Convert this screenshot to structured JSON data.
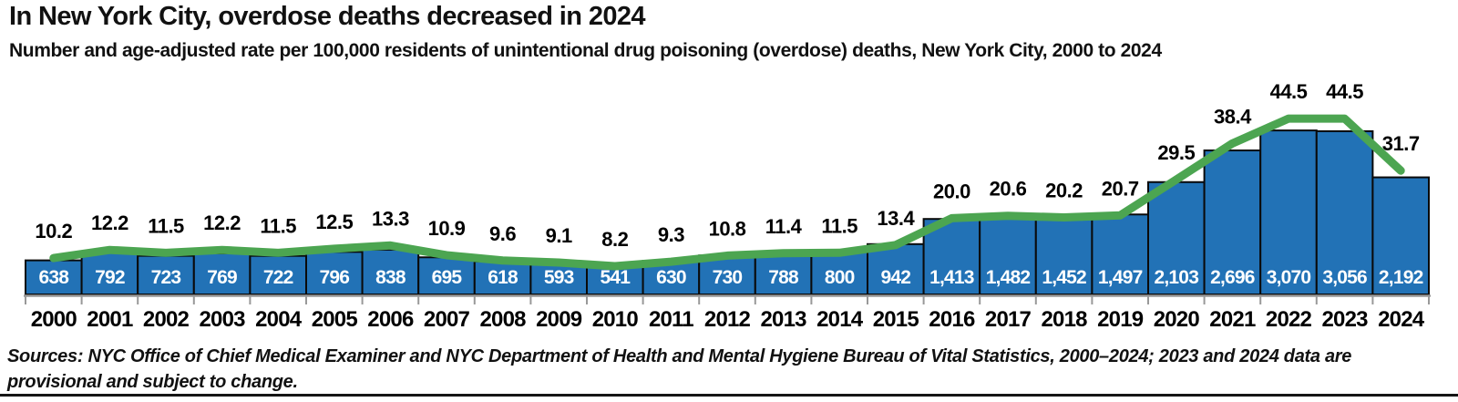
{
  "header": {
    "title": "In New York City, overdose deaths decreased in 2024",
    "subtitle": "Number and age-adjusted rate per 100,000 residents of unintentional drug poisoning (overdose) deaths, New York City, 2000 to 2024"
  },
  "footer": {
    "sources": "Sources: NYC Office of Chief Medical Examiner and NYC Department of Health and Mental Hygiene Bureau of Vital Statistics, 2000–2024; 2023 and 2024 data are provisional and subject to change."
  },
  "colors": {
    "bar_fill": "#2272B6",
    "bar_border": "#0A0A0A",
    "bar_label": "#FFFFFF",
    "rate_line": "#4CA551",
    "axis": "#999999",
    "text": "#000000"
  },
  "chart_data": {
    "type": "bar",
    "title": "In New York City, overdose deaths decreased in 2024",
    "subtitle": "Number and age-adjusted rate per 100,000 residents of unintentional drug poisoning (overdose) deaths, New York City, 2000 to 2024",
    "categories": [
      2000,
      2001,
      2002,
      2003,
      2004,
      2005,
      2006,
      2007,
      2008,
      2009,
      2010,
      2011,
      2012,
      2013,
      2014,
      2015,
      2016,
      2017,
      2018,
      2019,
      2020,
      2021,
      2022,
      2023,
      2024
    ],
    "series": [
      {
        "name": "Number of unintentional drug poisoning (overdose) deaths",
        "type": "bar",
        "values": [
          638,
          792,
          723,
          769,
          722,
          796,
          838,
          695,
          618,
          593,
          541,
          630,
          730,
          788,
          800,
          942,
          1413,
          1482,
          1452,
          1497,
          2103,
          2696,
          3070,
          3056,
          2192
        ]
      },
      {
        "name": "Age-adjusted rate per 100,000 residents",
        "type": "line",
        "values": [
          10.2,
          12.2,
          11.5,
          12.2,
          11.5,
          12.5,
          13.3,
          10.9,
          9.6,
          9.1,
          8.2,
          9.3,
          10.8,
          11.4,
          11.5,
          13.4,
          20.0,
          20.6,
          20.2,
          20.7,
          29.5,
          38.4,
          44.5,
          44.5,
          31.7
        ]
      }
    ],
    "xlabel": "",
    "ylabel": "",
    "ylim_bars": [
      0,
      3300
    ],
    "ylim_rate": [
      0,
      50
    ],
    "grid": false,
    "legend": "none",
    "value_labels": "bars labeled inside base in white; rates labeled above line in black"
  }
}
